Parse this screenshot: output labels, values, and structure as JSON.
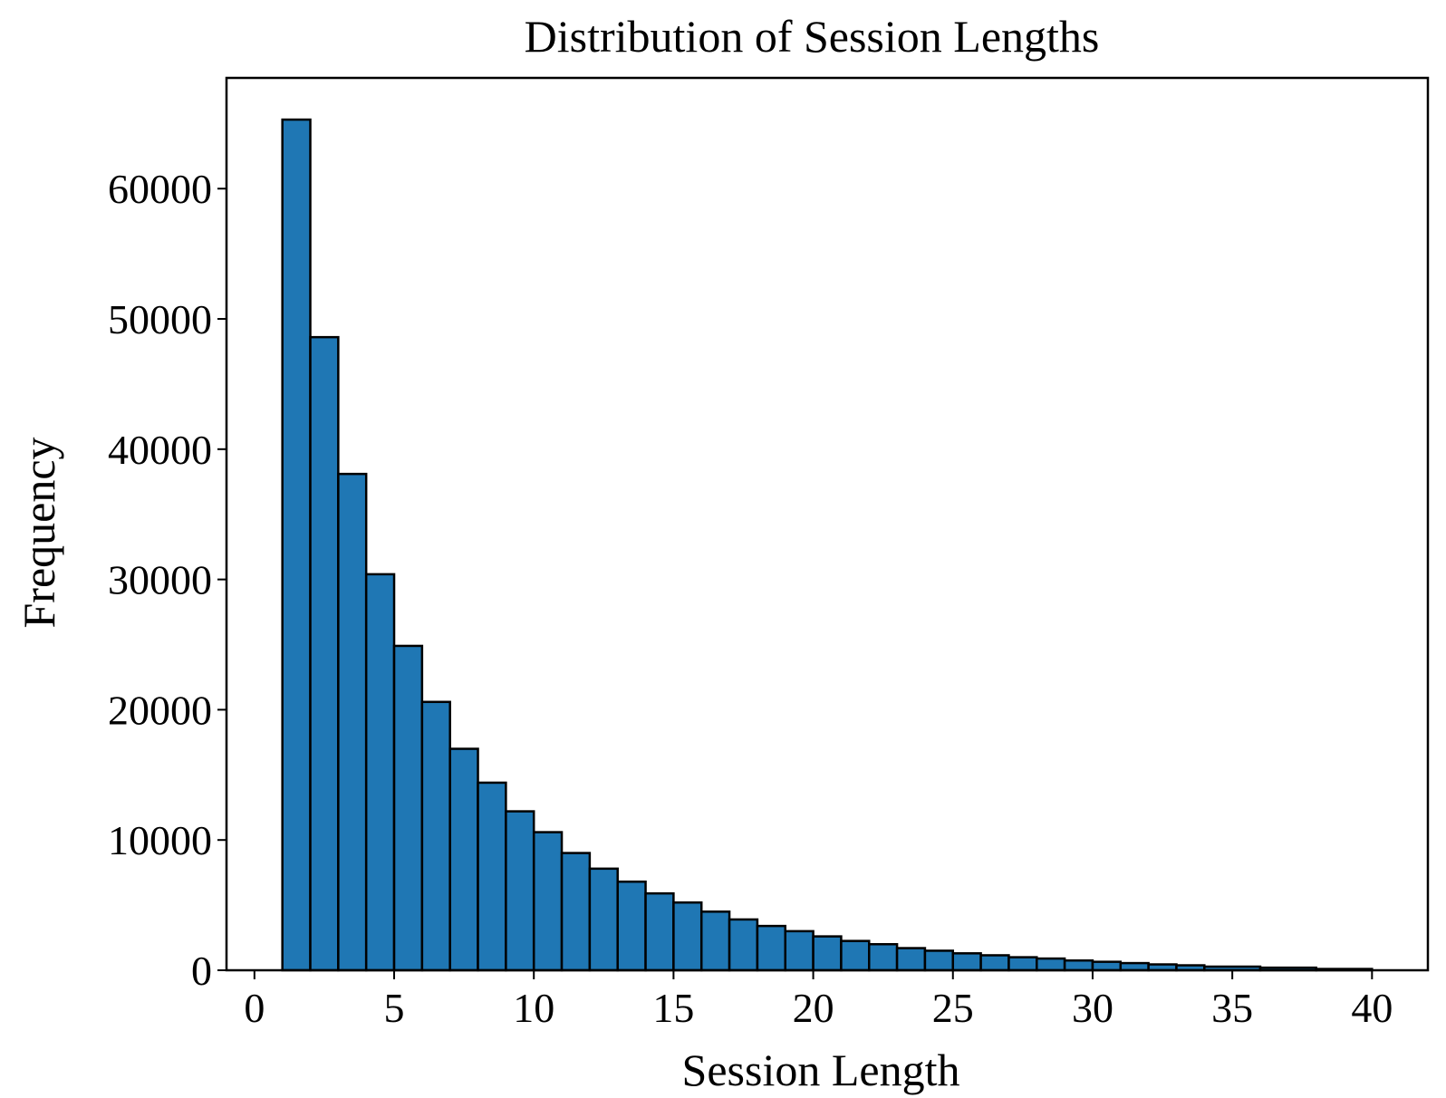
{
  "chart_data": {
    "type": "bar",
    "title": "Distribution of Session Lengths",
    "xlabel": "Session Length",
    "ylabel": "Frequency",
    "xlim": [
      -1,
      42
    ],
    "ylim": [
      0,
      68500
    ],
    "xticks": [
      0,
      5,
      10,
      15,
      20,
      25,
      30,
      35,
      40
    ],
    "yticks": [
      0,
      10000,
      20000,
      30000,
      40000,
      50000,
      60000
    ],
    "grid": false,
    "bar_color": "#1f77b4",
    "edge_color": "#000000",
    "bins": [
      {
        "x0": 1,
        "x1": 2,
        "value": 65300
      },
      {
        "x0": 2,
        "x1": 3,
        "value": 48600
      },
      {
        "x0": 3,
        "x1": 4,
        "value": 38100
      },
      {
        "x0": 4,
        "x1": 5,
        "value": 30400
      },
      {
        "x0": 5,
        "x1": 6,
        "value": 24900
      },
      {
        "x0": 6,
        "x1": 7,
        "value": 20600
      },
      {
        "x0": 7,
        "x1": 8,
        "value": 17000
      },
      {
        "x0": 8,
        "x1": 9,
        "value": 14400
      },
      {
        "x0": 9,
        "x1": 10,
        "value": 12200
      },
      {
        "x0": 10,
        "x1": 11,
        "value": 10600
      },
      {
        "x0": 11,
        "x1": 12,
        "value": 9000
      },
      {
        "x0": 12,
        "x1": 13,
        "value": 7800
      },
      {
        "x0": 13,
        "x1": 14,
        "value": 6800
      },
      {
        "x0": 14,
        "x1": 15,
        "value": 5900
      },
      {
        "x0": 15,
        "x1": 16,
        "value": 5200
      },
      {
        "x0": 16,
        "x1": 17,
        "value": 4500
      },
      {
        "x0": 17,
        "x1": 18,
        "value": 3900
      },
      {
        "x0": 18,
        "x1": 19,
        "value": 3400
      },
      {
        "x0": 19,
        "x1": 20,
        "value": 3000
      },
      {
        "x0": 20,
        "x1": 21,
        "value": 2600
      },
      {
        "x0": 21,
        "x1": 22,
        "value": 2250
      },
      {
        "x0": 22,
        "x1": 23,
        "value": 2000
      },
      {
        "x0": 23,
        "x1": 24,
        "value": 1700
      },
      {
        "x0": 24,
        "x1": 25,
        "value": 1500
      },
      {
        "x0": 25,
        "x1": 26,
        "value": 1300
      },
      {
        "x0": 26,
        "x1": 27,
        "value": 1150
      },
      {
        "x0": 27,
        "x1": 28,
        "value": 1000
      },
      {
        "x0": 28,
        "x1": 29,
        "value": 900
      },
      {
        "x0": 29,
        "x1": 30,
        "value": 750
      },
      {
        "x0": 30,
        "x1": 31,
        "value": 650
      },
      {
        "x0": 31,
        "x1": 32,
        "value": 550
      },
      {
        "x0": 32,
        "x1": 33,
        "value": 450
      },
      {
        "x0": 33,
        "x1": 34,
        "value": 380
      },
      {
        "x0": 34,
        "x1": 36,
        "value": 280
      },
      {
        "x0": 36,
        "x1": 38,
        "value": 200
      },
      {
        "x0": 38,
        "x1": 40,
        "value": 100
      }
    ]
  }
}
